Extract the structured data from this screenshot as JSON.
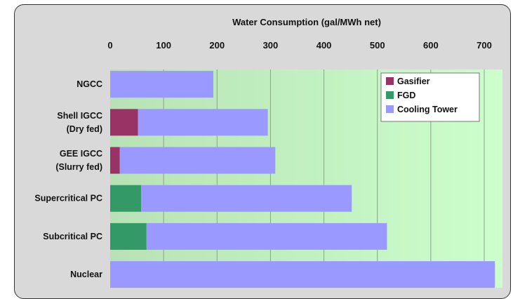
{
  "chart_data": {
    "type": "bar",
    "orientation": "horizontal",
    "stacked": true,
    "title": "Water Consumption (gal/MWh net)",
    "xlim": [
      0,
      720
    ],
    "xticks": [
      0,
      100,
      200,
      300,
      400,
      500,
      600,
      700
    ],
    "x_axis_position": "top",
    "grid": true,
    "legend_position": "top-right",
    "categories": [
      [
        "NGCC"
      ],
      [
        "Shell IGCC",
        "(Dry fed)"
      ],
      [
        "GEE IGCC",
        "(Slurry fed)"
      ],
      [
        "Supercritical PC"
      ],
      [
        "Subcritical PC"
      ],
      [
        "Nuclear"
      ]
    ],
    "series": [
      {
        "name": "Gasifier",
        "color": "#993366",
        "values": [
          0,
          52,
          18,
          0,
          0,
          0
        ]
      },
      {
        "name": "FGD",
        "color": "#339966",
        "values": [
          0,
          0,
          0,
          58,
          68,
          0
        ]
      },
      {
        "name": "Cooling Tower",
        "color": "#9999ff",
        "values": [
          193,
          243,
          291,
          394,
          450,
          720
        ]
      }
    ]
  }
}
